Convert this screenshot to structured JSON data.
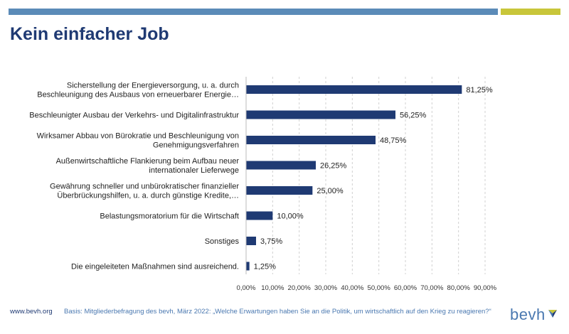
{
  "header": {
    "title": "Kein einfacher Job"
  },
  "colors": {
    "bar": "#1f3a73",
    "topbar_blue": "#5b8bb8",
    "topbar_green": "#c8c63a",
    "title": "#1f3a73"
  },
  "chart_data": {
    "type": "bar",
    "orientation": "horizontal",
    "categories": [
      [
        "Sicherstellung der Energieversorgung, u. a. durch",
        "Beschleunigung des Ausbaus von erneuerbarer Energie…"
      ],
      [
        "Beschleunigter Ausbau der Verkehrs- und Digitalinfrastruktur"
      ],
      [
        "Wirksamer Abbau von Bürokratie und Beschleunigung von",
        "Genehmigungsverfahren"
      ],
      [
        "Außenwirtschaftliche Flankierung beim Aufbau neuer",
        "internationaler Lieferwege"
      ],
      [
        "Gewährung schneller und unbürokratischer finanzieller",
        "Überbrückungshilfen, u. a. durch günstige Kredite,…"
      ],
      [
        "Belastungsmoratorium für die Wirtschaft"
      ],
      [
        "Sonstiges"
      ],
      [
        "Die eingeleiteten Maßnahmen sind ausreichend."
      ]
    ],
    "values": [
      81.25,
      56.25,
      48.75,
      26.25,
      25.0,
      10.0,
      3.75,
      1.25
    ],
    "value_labels": [
      "81,25%",
      "56,25%",
      "48,75%",
      "26,25%",
      "25,00%",
      "10,00%",
      "3,75%",
      "1,25%"
    ],
    "xlim": [
      0,
      90
    ],
    "xticks": [
      0,
      10,
      20,
      30,
      40,
      50,
      60,
      70,
      80,
      90
    ],
    "xtick_labels": [
      "0,00%",
      "10,00%",
      "20,00%",
      "30,00%",
      "40,00%",
      "50,00%",
      "60,00%",
      "70,00%",
      "80,00%",
      "90,00%"
    ],
    "grid": "vertical-dashed",
    "legend": "none"
  },
  "footer": {
    "url": "www.bevh.org",
    "source": "Basis: Mitgliederbefragung des bevh, März 2022: „Welche Erwartungen haben Sie an die Politik, um wirtschaftlich auf den Krieg zu reagieren?“",
    "logo_text": "bevh"
  }
}
